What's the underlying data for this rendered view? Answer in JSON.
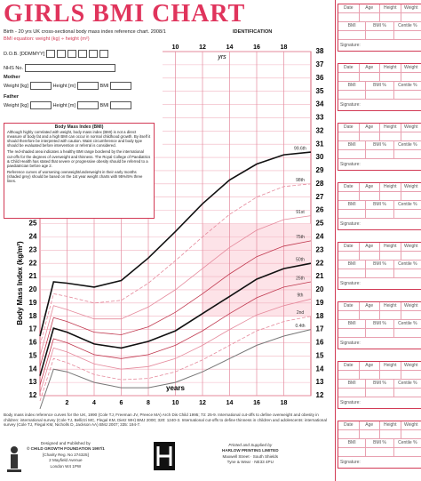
{
  "header": {
    "title": "GIRLS BMI CHART",
    "subtitle": "Birth - 20 yrs UK cross-sectional body mass index reference chart. 2008/1",
    "equation": "BMI equation: weight (kg) ÷ height (m²)",
    "identification": "IDENTIFICATION"
  },
  "form": {
    "dob": "D.O.B. [DDMMYY]",
    "nhs": "NHS No.",
    "mother": "Mother",
    "father": "Father",
    "weight": "Weight [kg]",
    "height": "Height [m]",
    "bmi": "BMI"
  },
  "info_box": {
    "title": "Body Mass Index (BMI)",
    "paragraphs": [
      "Although highly correlated with weight, body mass index (BMI) is not a direct measure of body fat and a high BMI can occur in normal childhood growth. By itself it should therefore be interpreted with caution. Waist circumference and body type should be evaluated before intervention or referral is considered.",
      "The red-shaded area indicates a healthy BMI range bordered by the international cut-offs for the degrees of overweight and thinness. The Royal College of Paediatrics & Child Health has stated that severe or progressive obesity should be referred to a paediatrician before age 2.",
      "Reference curves of worsening overweight/underweight in their early months (shaded grey) should be based on the 1st year weight charts with 95%/5% three lines."
    ]
  },
  "record": {
    "headers": [
      "Date",
      "Age",
      "Height",
      "Weight"
    ],
    "headers2": [
      "BMI",
      "BMI %",
      "Centile %"
    ],
    "signature": "Signature:"
  },
  "footer": {
    "reference": "Body mass index reference curves for the UK, 1990 (Cole TJ, Freeman JV, Preece MA) Arch Dis Child 1995; 73: 25-9. International cut-offs to define overweight and obesity in children: international survey (Cole TJ, Bellizzi MC, Flegal KM, Dietz WH) BMJ 2000; 320: 1240-3. International cut-offs to define thinness in children and adolescents: international survey (Cole TJ, Flegal KM, Nicholls D, Jackson AA) BMJ 2007; 335: 194-7.",
    "publisher": [
      "Designed and Published by",
      "© CHILD GROWTH FOUNDATION 1997/1",
      "[Charity Reg. No 274325]",
      "2 Mayfield Avenue",
      "London W4 1PW"
    ],
    "printer": [
      "Printed and Supplied by",
      "HARLOW PRINTING LIMITED",
      "Maxwell Street · South Shields",
      "Tyne & Wear · NE33 4PU"
    ]
  },
  "chart_data": {
    "type": "line",
    "y_label": "Body Mass Index (kg/m²)",
    "x_label": "years",
    "x_label_top": "yrs",
    "x": [
      0,
      1,
      2,
      4,
      6,
      8,
      10,
      12,
      14,
      16,
      18,
      20
    ],
    "series": [
      {
        "name": "99.6th",
        "color": "#111111",
        "dashed": false,
        "width": 1.6,
        "values": [
          16.5,
          20.6,
          20.5,
          20.2,
          20.7,
          22.4,
          24.4,
          26.5,
          28.3,
          29.5,
          30.2,
          30.4
        ]
      },
      {
        "name": "98th",
        "color": "#e58a9c",
        "dashed": true,
        "width": 0.8,
        "values": [
          15.8,
          19.7,
          19.5,
          19.0,
          19.2,
          20.5,
          22.2,
          24.0,
          25.7,
          27.0,
          27.8,
          28.0
        ]
      },
      {
        "name": "91st",
        "color": "#e58a9c",
        "dashed": false,
        "width": 0.8,
        "values": [
          15.0,
          18.8,
          18.5,
          17.8,
          17.8,
          18.7,
          20.0,
          21.6,
          23.2,
          24.5,
          25.3,
          25.6
        ]
      },
      {
        "name": "75th",
        "color": "#c0394f",
        "dashed": false,
        "width": 0.8,
        "values": [
          14.2,
          17.9,
          17.6,
          16.8,
          16.6,
          17.2,
          18.3,
          19.7,
          21.2,
          22.5,
          23.3,
          23.7
        ]
      },
      {
        "name": "50th",
        "color": "#111111",
        "dashed": false,
        "width": 1.6,
        "values": [
          13.5,
          17.1,
          16.8,
          15.9,
          15.6,
          16.1,
          16.9,
          18.2,
          19.5,
          20.8,
          21.6,
          22.0
        ]
      },
      {
        "name": "25th",
        "color": "#c0394f",
        "dashed": false,
        "width": 0.8,
        "values": [
          12.8,
          16.3,
          16.0,
          15.1,
          14.8,
          15.1,
          15.8,
          16.9,
          18.2,
          19.4,
          20.2,
          20.6
        ]
      },
      {
        "name": "9th",
        "color": "#e58a9c",
        "dashed": false,
        "width": 0.8,
        "values": [
          12.2,
          15.6,
          15.3,
          14.4,
          14.0,
          14.2,
          14.8,
          15.8,
          17.0,
          18.1,
          18.8,
          19.3
        ]
      },
      {
        "name": "2nd",
        "color": "#e58a9c",
        "dashed": true,
        "width": 0.8,
        "values": [
          11.6,
          14.8,
          14.5,
          13.6,
          13.2,
          13.3,
          13.8,
          14.7,
          15.8,
          16.9,
          17.6,
          18.0
        ]
      },
      {
        "name": "0.4th",
        "color": "#777777",
        "dashed": false,
        "width": 1,
        "values": [
          11.0,
          14.0,
          13.8,
          13.0,
          12.6,
          12.6,
          13.0,
          13.8,
          14.8,
          15.8,
          16.5,
          17.0
        ]
      }
    ],
    "xlim": [
      0,
      20
    ],
    "ylim": [
      12,
      38
    ],
    "xticks": [
      2,
      4,
      6,
      8,
      10,
      12,
      14,
      16,
      18
    ],
    "yticks": [
      12,
      13,
      14,
      15,
      16,
      17,
      18,
      19,
      20,
      21,
      22,
      23,
      24,
      25,
      26,
      27,
      28,
      29,
      30,
      31,
      32,
      33,
      34,
      35,
      36,
      37,
      38
    ],
    "grid": true
  }
}
